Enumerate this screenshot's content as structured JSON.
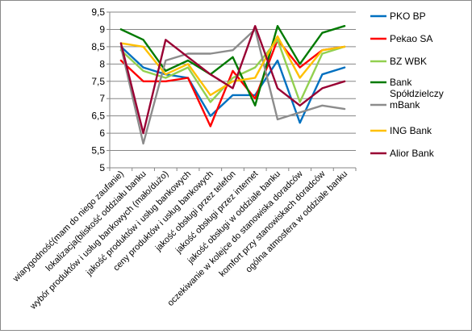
{
  "chart_data": {
    "type": "line",
    "title": "",
    "xlabel": "",
    "ylabel": "",
    "ylim": [
      5,
      9.5
    ],
    "yticks": [
      "5",
      "5,5",
      "6",
      "6,5",
      "7",
      "7,5",
      "8",
      "8,5",
      "9",
      "9,5"
    ],
    "categories": [
      "wiarygodność(mam do niego zaufanie)",
      "lokalizacja(bliskość oddziału banku",
      "wybór produktów i usług bankowych (mało/dużo)",
      "jakość produktów i usług bankowych",
      "ceny produktów i usług bankowych",
      "jakość obsługi przez telefon",
      "jakość obsługi przez internet",
      "jakość obsługi w oddziale banku",
      "oczekiwanie w kolejce do stanowiska doradców",
      "komfort przy stanowiskach doradców",
      "ogólna atmosfera w oddziale banku"
    ],
    "grid": "horizontal",
    "legend_position": "right",
    "series": [
      {
        "name": "PKO BP",
        "color": "#0070C0",
        "values": [
          8.5,
          7.9,
          7.7,
          7.6,
          6.5,
          7.1,
          7.1,
          8.1,
          6.3,
          7.7,
          7.9
        ]
      },
      {
        "name": "Pekao SA",
        "color": "#FF0000",
        "values": [
          8.1,
          7.5,
          7.5,
          7.6,
          6.2,
          7.8,
          7.0,
          8.7,
          7.9,
          8.4,
          8.5
        ]
      },
      {
        "name": "BZ WBK",
        "color": "#92D050",
        "values": [
          8.4,
          7.8,
          7.6,
          7.9,
          6.9,
          7.6,
          7.9,
          8.7,
          6.9,
          8.3,
          8.5
        ]
      },
      {
        "name": "Bank Spółdzielczy m Bank",
        "color": "#007A00",
        "values": [
          9.0,
          8.7,
          7.8,
          8.1,
          7.7,
          8.2,
          6.8,
          9.1,
          8.0,
          8.9,
          9.1
        ]
      },
      {
        "name": "",
        "color": "#8C8C8C",
        "values": [
          8.5,
          5.7,
          8.1,
          8.3,
          8.3,
          8.4,
          9.0,
          6.4,
          6.6,
          6.8,
          6.7
        ]
      },
      {
        "name": "ING Bank",
        "color": "#FFC000",
        "values": [
          8.6,
          8.5,
          7.7,
          8.0,
          7.1,
          7.5,
          7.6,
          8.8,
          7.6,
          8.4,
          8.5
        ]
      },
      {
        "name": "Alior Bank",
        "color": "#990033",
        "values": [
          8.6,
          6.0,
          8.7,
          8.2,
          7.7,
          7.3,
          9.1,
          7.3,
          6.8,
          7.3,
          7.5
        ]
      }
    ],
    "legend": [
      {
        "label_lines": [
          "PKO BP"
        ],
        "color": "#0070C0"
      },
      {
        "label_lines": [
          "Pekao SA"
        ],
        "color": "#FF0000"
      },
      {
        "label_lines": [
          "BZ WBK"
        ],
        "color": "#92D050"
      },
      {
        "label_lines": [
          "Bank",
          "Spółdzielczy",
          "mBank"
        ],
        "color": "#007A00",
        "color2": "#8C8C8C"
      },
      {
        "label_lines": [
          "ING Bank"
        ],
        "color": "#FFC000"
      },
      {
        "label_lines": [
          "Alior Bank"
        ],
        "color": "#990033"
      }
    ]
  }
}
